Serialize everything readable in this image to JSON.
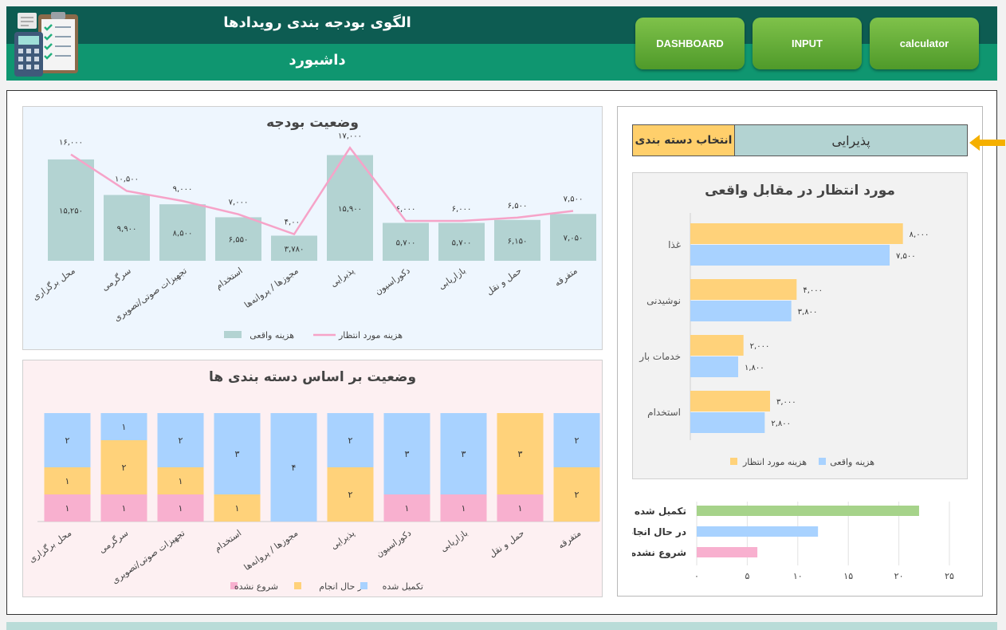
{
  "header": {
    "title": "الگوی بودجه بندی رویدادها",
    "subtitle": "داشبورد",
    "nav": [
      {
        "label": "DASHBOARD"
      },
      {
        "label": "INPUT"
      },
      {
        "label": "calculator"
      }
    ]
  },
  "selector": {
    "label": "انتخاب دسته بندی",
    "value": "پذیرایی"
  },
  "colors": {
    "actual_bar": "#b3d3d2",
    "expected_line": "#f6a3c8",
    "expected_orange": "#ffd27a",
    "actual_blue": "#a8d2ff",
    "done_green": "#a6d38a",
    "not_started_pink": "#f8b0cf"
  },
  "chart_data": [
    {
      "id": "budget_status",
      "type": "bar",
      "title": "وضعیت بودجه",
      "categories": [
        "محل برگزاری",
        "سرگرمی",
        "تجهیزات صوتی/تصویری",
        "استخدام",
        "مجوزها / پروانه‌ها",
        "پذیرایی",
        "دکوراسیون",
        "بازاریابی",
        "حمل و نقل",
        "متفرقه"
      ],
      "series": [
        {
          "name": "هزینه واقعی",
          "type": "bar",
          "values": [
            15250,
            9900,
            8500,
            6550,
            3780,
            15900,
            5700,
            5700,
            6150,
            7050
          ],
          "labels": [
            "۱۵,۲۵۰",
            "۹,۹۰۰",
            "۸,۵۰۰",
            "۶,۵۵۰",
            "۳,۷۸۰",
            "۱۵,۹۰۰",
            "۵,۷۰۰",
            "۵,۷۰۰",
            "۶,۱۵۰",
            "۷,۰۵۰"
          ]
        },
        {
          "name": "هزینه مورد انتظار",
          "type": "line",
          "values": [
            16000,
            10500,
            9000,
            7000,
            4000,
            17000,
            6000,
            6000,
            6500,
            7500
          ],
          "labels": [
            "۱۶,۰۰۰",
            "۱۰,۵۰۰",
            "۹,۰۰۰",
            "۷,۰۰۰",
            "۴,۰۰۰",
            "۱۷,۰۰۰",
            "۶,۰۰۰",
            "۶,۰۰۰",
            "۶,۵۰۰",
            "۷,۵۰۰"
          ]
        }
      ],
      "ylim": [
        0,
        18000
      ],
      "legend": "bottom"
    },
    {
      "id": "category_status",
      "type": "bar",
      "stacked": true,
      "percent": true,
      "title": "وضعیت بر اساس دسته بندی ها",
      "categories": [
        "محل برگزاری",
        "سرگرمی",
        "تجهیزات صوتی/تصویری",
        "استخدام",
        "مجوزها / پروانه‌ها",
        "پذیرایی",
        "دکوراسیون",
        "بازاریابی",
        "حمل و نقل",
        "متفرقه"
      ],
      "series": [
        {
          "name": "شروع نشده",
          "values": [
            1,
            1,
            1,
            0,
            0,
            0,
            1,
            1,
            1,
            0
          ],
          "labels": [
            "۱",
            "۱",
            "۱",
            "",
            "",
            "",
            "۱",
            "۱",
            "۱",
            ""
          ]
        },
        {
          "name": "در حال انجام",
          "values": [
            1,
            2,
            1,
            1,
            0,
            2,
            0,
            0,
            3,
            2
          ],
          "labels": [
            "۱",
            "۲",
            "۱",
            "۱",
            "",
            "۲",
            "",
            "",
            "۳",
            "۲"
          ]
        },
        {
          "name": "تکمیل شده",
          "values": [
            2,
            1,
            2,
            3,
            4,
            2,
            3,
            3,
            0,
            2
          ],
          "labels": [
            "۲",
            "۱",
            "۲",
            "۳",
            "۴",
            "۲",
            "۳",
            "۳",
            "",
            "۲"
          ]
        }
      ],
      "legend": "bottom"
    },
    {
      "id": "expected_vs_actual",
      "type": "bar",
      "orientation": "horizontal",
      "title": "مورد انتظار در مقابل واقعی",
      "categories": [
        "غذا",
        "نوشیدنی",
        "خدمات بار",
        "استخدام"
      ],
      "series": [
        {
          "name": "هزینه مورد انتظار",
          "values": [
            8000,
            4000,
            2000,
            3000
          ],
          "labels": [
            "۸,۰۰۰",
            "۴,۰۰۰",
            "۲,۰۰۰",
            "۳,۰۰۰"
          ]
        },
        {
          "name": "هزینه واقعی",
          "values": [
            7500,
            3800,
            1800,
            2800
          ],
          "labels": [
            "۷,۵۰۰",
            "۳,۸۰۰",
            "۱,۸۰۰",
            "۲,۸۰۰"
          ]
        }
      ],
      "xlim": [
        0,
        9000
      ],
      "legend": "bottom"
    },
    {
      "id": "task_status",
      "type": "bar",
      "orientation": "horizontal",
      "categories": [
        "تکمیل شده",
        "در حال انجام",
        "شروع نشده"
      ],
      "values": [
        22,
        12,
        6
      ],
      "xlim": [
        0,
        25
      ],
      "xticks": [
        0,
        5,
        10,
        15,
        20,
        25
      ],
      "xtick_labels": [
        "۰",
        "۵",
        "۱۰",
        "۱۵",
        "۲۰",
        "۲۵"
      ],
      "grid": true
    }
  ]
}
